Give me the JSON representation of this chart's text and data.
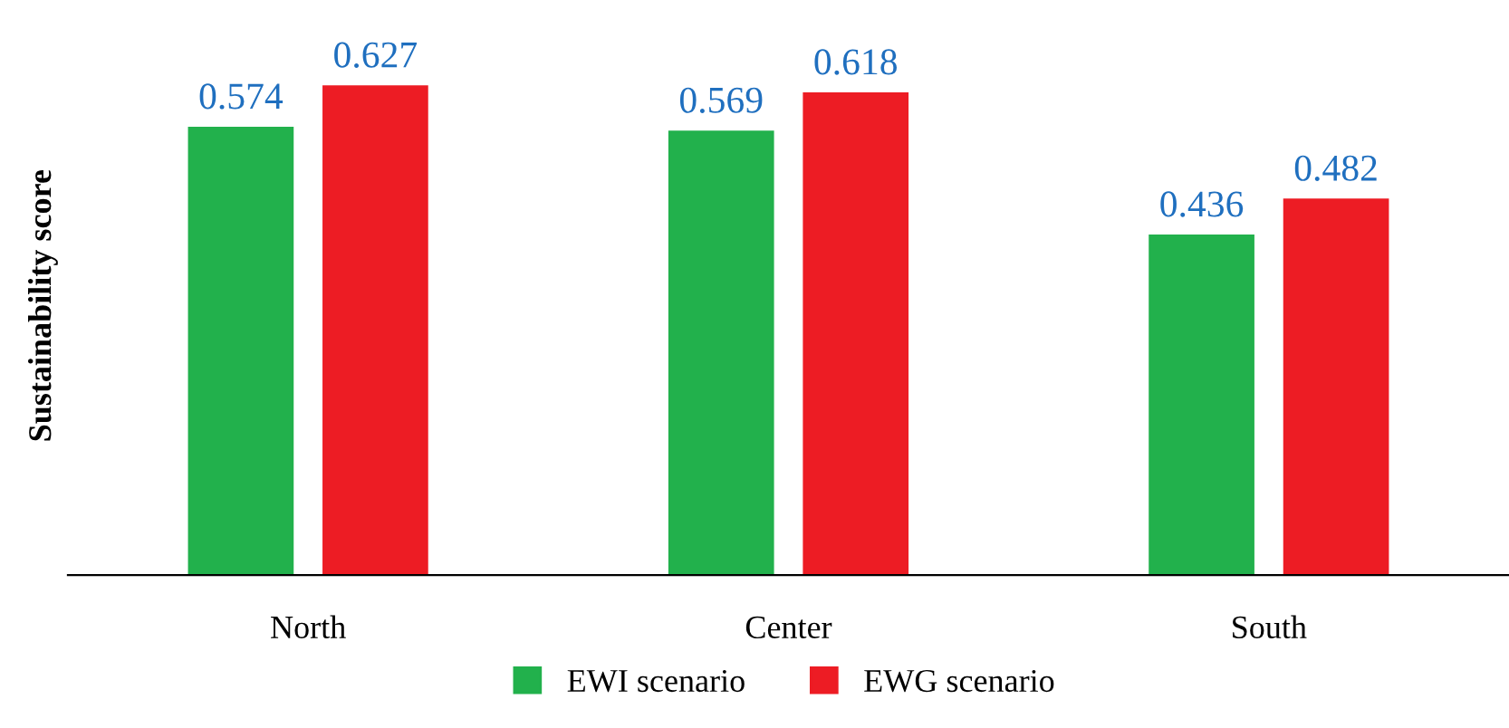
{
  "chart_data": {
    "type": "bar",
    "ylabel": "Sustainability score",
    "categories": [
      "North",
      "Center",
      "South"
    ],
    "series": [
      {
        "name": "EWI scenario",
        "color": "#22b14c",
        "values": [
          0.574,
          0.569,
          0.436
        ]
      },
      {
        "name": "EWG scenario",
        "color": "#ed1c24",
        "values": [
          0.627,
          0.618,
          0.482
        ]
      }
    ],
    "data_labels": true,
    "legend": "bottom",
    "grid": false,
    "tick_labels": "x"
  }
}
